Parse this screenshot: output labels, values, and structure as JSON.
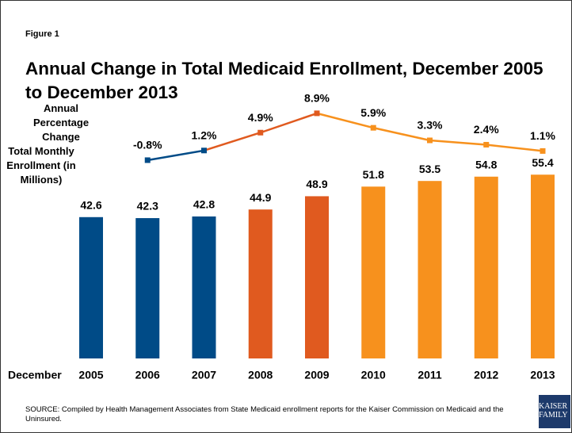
{
  "chart_data": {
    "type": "bar",
    "figure_label": "Figure 1",
    "title": "Annual Change in Total Medicaid Enrollment, December 2005 to December 2013",
    "x_label": "December",
    "categories": [
      "2005",
      "2006",
      "2007",
      "2008",
      "2009",
      "2010",
      "2011",
      "2012",
      "2013"
    ],
    "ylim": [
      0,
      60
    ],
    "y2lim": [
      -10,
      12
    ],
    "series": [
      {
        "name": "Total Monthly Enrollment (in Millions)",
        "type": "bar",
        "values": [
          42.6,
          42.3,
          42.8,
          44.9,
          48.9,
          51.8,
          53.5,
          54.8,
          55.4
        ],
        "colors": [
          "#004b87",
          "#004b87",
          "#004b87",
          "#e05a1f",
          "#e05a1f",
          "#f7911d",
          "#f7911d",
          "#f7911d",
          "#f7911d"
        ]
      },
      {
        "name": "Annual Percentage Change",
        "type": "line",
        "axis": "y2",
        "values": [
          null,
          -0.8,
          1.2,
          4.9,
          8.9,
          5.9,
          3.3,
          2.4,
          1.1
        ],
        "value_labels": [
          null,
          "-0.8%",
          "1.2%",
          "4.9%",
          "8.9%",
          "5.9%",
          "3.3%",
          "2.4%",
          "1.1%"
        ],
        "colors": [
          null,
          "#004b87",
          "#004b87",
          "#e05a1f",
          "#e05a1f",
          "#f7911d",
          "#f7911d",
          "#f7911d",
          "#f7911d"
        ]
      }
    ],
    "source": "SOURCE: Compiled by Health Management Associates from State Medicaid enrollment reports for the Kaiser Commission on Medicaid and the Uninsured.",
    "logo": [
      "KAISER",
      "FAMILY"
    ]
  }
}
